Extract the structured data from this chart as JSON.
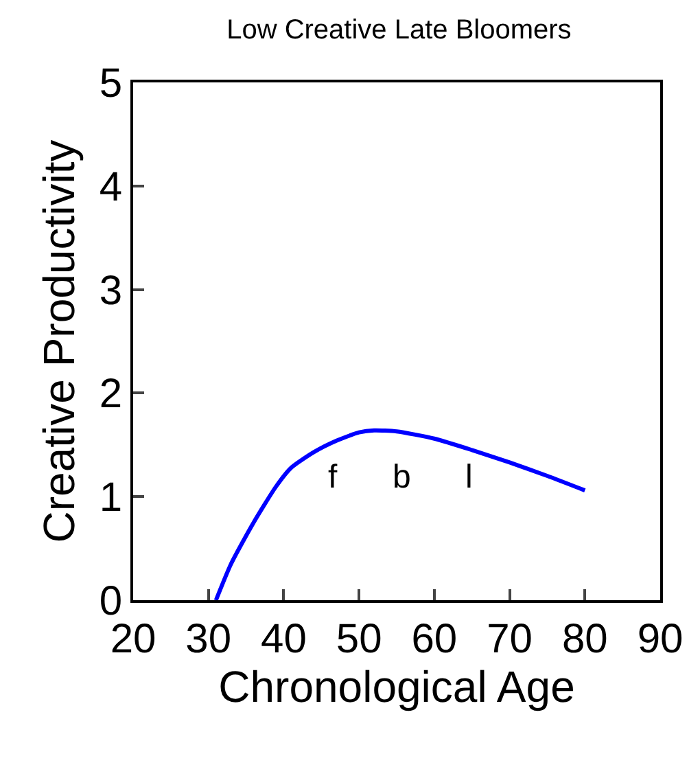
{
  "chart_data": {
    "type": "line",
    "title": "Low Creative Late Bloomers",
    "xlabel": "Chronological Age",
    "ylabel": "Creative Productivity",
    "x": [
      31,
      33,
      36,
      39,
      41,
      44,
      47,
      50,
      52,
      55,
      60,
      65,
      70,
      75,
      80
    ],
    "series": [
      {
        "color": "#0000ff",
        "values": [
          0,
          0.35,
          0.75,
          1.1,
          1.28,
          1.43,
          1.54,
          1.62,
          1.64,
          1.63,
          1.56,
          1.45,
          1.33,
          1.2,
          1.06
        ]
      }
    ],
    "xlim": [
      20,
      90
    ],
    "xticks": [
      20,
      30,
      40,
      50,
      60,
      70,
      80,
      90
    ],
    "ylim": [
      0,
      5
    ],
    "yticks": [
      0,
      1,
      2,
      3,
      4,
      5
    ],
    "annotations": [
      "f",
      "b",
      "l"
    ],
    "legend": false,
    "marker": "none",
    "line_style": "solid"
  }
}
